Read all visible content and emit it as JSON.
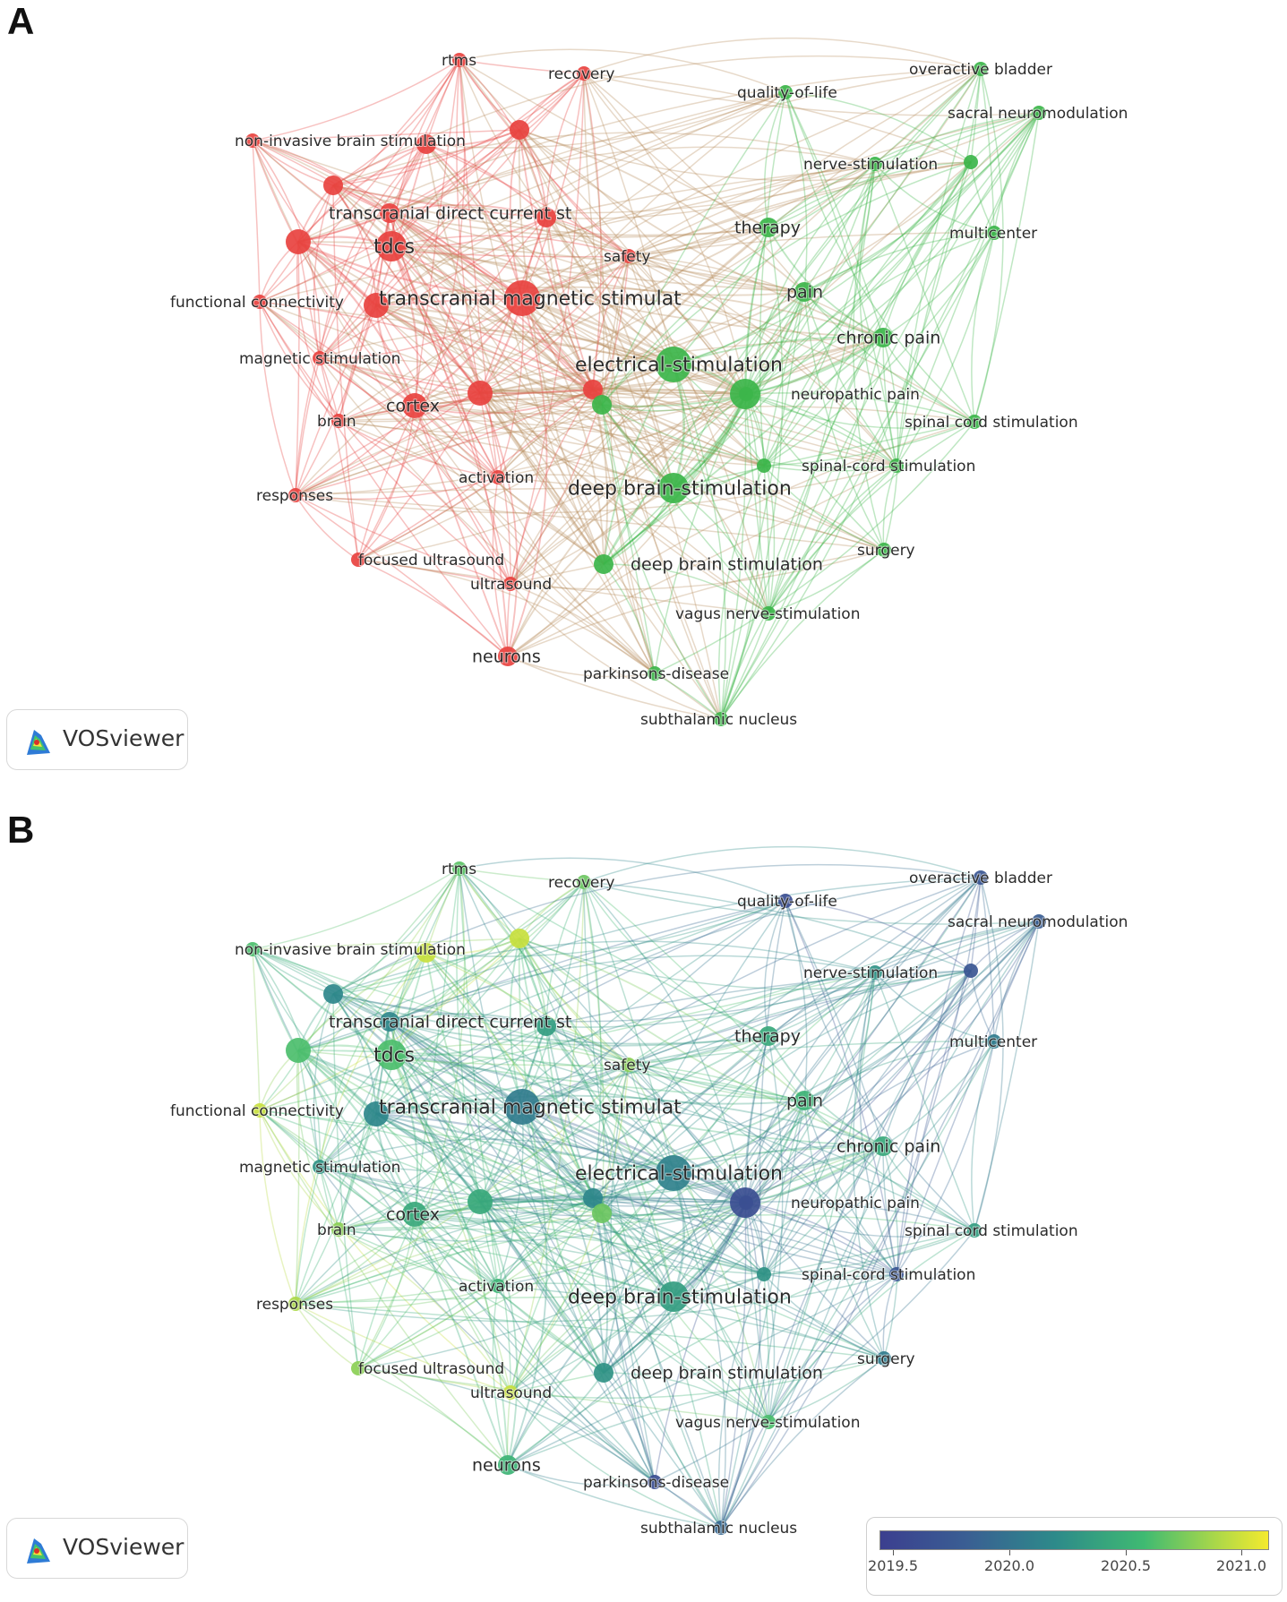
{
  "panels": [
    {
      "letter": "A",
      "mode": "cluster"
    },
    {
      "letter": "B",
      "mode": "overlay"
    }
  ],
  "brand": {
    "name": "VOSviewer"
  },
  "overlay_scale": {
    "ticks": [
      "2019.5",
      "2020.0",
      "2020.5",
      "2021.0"
    ],
    "min": 2019.3,
    "max": 2021.15
  },
  "cluster_colors": {
    "red": "#e8423f",
    "green": "#3cb54a"
  },
  "keywords": [
    {
      "label": "rtms",
      "cluster": "red",
      "weight": 2,
      "year": 2020.65
    },
    {
      "label": "recovery",
      "cluster": "red",
      "weight": 2,
      "year": 2020.7
    },
    {
      "label": "non-invasive brain stimulation",
      "cluster": "red",
      "weight": 2,
      "year": 2020.6
    },
    {
      "label": "transcranial direct current st",
      "cluster": "red",
      "weight": 3,
      "year": 2020.1
    },
    {
      "label": "tdcs",
      "cluster": "red",
      "weight": 5,
      "year": 2020.6
    },
    {
      "label": "transcranial magnetic stimulat",
      "cluster": "red",
      "weight": 6,
      "year": 2020.0
    },
    {
      "label": "functional connectivity",
      "cluster": "red",
      "weight": 2,
      "year": 2021.0
    },
    {
      "label": "magnetic stimulation",
      "cluster": "red",
      "weight": 2,
      "year": 2020.2
    },
    {
      "label": "brain",
      "cluster": "red",
      "weight": 2,
      "year": 2020.8
    },
    {
      "label": "cortex",
      "cluster": "red",
      "weight": 4,
      "year": 2020.4
    },
    {
      "label": "safety",
      "cluster": "red",
      "weight": 2,
      "year": 2020.8
    },
    {
      "label": "activation",
      "cluster": "red",
      "weight": 2,
      "year": 2020.5
    },
    {
      "label": "responses",
      "cluster": "red",
      "weight": 2,
      "year": 2020.9
    },
    {
      "label": "focused ultrasound",
      "cluster": "red",
      "weight": 2,
      "year": 2020.8
    },
    {
      "label": "ultrasound",
      "cluster": "red",
      "weight": 2,
      "year": 2021.0
    },
    {
      "label": "neurons",
      "cluster": "red",
      "weight": 3,
      "year": 2020.5
    },
    {
      "label": "electrical-stimulation",
      "cluster": "green",
      "weight": 6,
      "year": 2020.05
    },
    {
      "label": "deep brain-stimulation",
      "cluster": "green",
      "weight": 5,
      "year": 2020.3
    },
    {
      "label": "deep brain stimulation",
      "cluster": "green",
      "weight": 3,
      "year": 2020.2
    },
    {
      "label": "therapy",
      "cluster": "green",
      "weight": 3,
      "year": 2020.4
    },
    {
      "label": "pain",
      "cluster": "green",
      "weight": 3,
      "year": 2020.5
    },
    {
      "label": "chronic pain",
      "cluster": "green",
      "weight": 3,
      "year": 2020.4
    },
    {
      "label": "neuropathic pain",
      "cluster": "green",
      "weight": 2,
      "year": 2019.6
    },
    {
      "label": "spinal cord stimulation",
      "cluster": "green",
      "weight": 2,
      "year": 2020.3
    },
    {
      "label": "spinal-cord stimulation",
      "cluster": "green",
      "weight": 2,
      "year": 2019.6
    },
    {
      "label": "surgery",
      "cluster": "green",
      "weight": 2,
      "year": 2020.0
    },
    {
      "label": "vagus nerve-stimulation",
      "cluster": "green",
      "weight": 2,
      "year": 2020.6
    },
    {
      "label": "parkinsons-disease",
      "cluster": "green",
      "weight": 2,
      "year": 2019.5
    },
    {
      "label": "subthalamic nucleus",
      "cluster": "green",
      "weight": 2,
      "year": 2019.8
    },
    {
      "label": "quality-of-life",
      "cluster": "green",
      "weight": 2,
      "year": 2019.5
    },
    {
      "label": "overactive bladder",
      "cluster": "green",
      "weight": 2,
      "year": 2019.6
    },
    {
      "label": "sacral neuromodulation",
      "cluster": "green",
      "weight": 2,
      "year": 2019.7
    },
    {
      "label": "nerve-stimulation",
      "cluster": "green",
      "weight": 2,
      "year": 2020.2
    },
    {
      "label": "multicenter",
      "cluster": "green",
      "weight": 2,
      "year": 2020.0
    }
  ],
  "unlabeled_nodes": [
    {
      "cluster": "red",
      "weight": 3,
      "year": 2021.0
    },
    {
      "cluster": "red",
      "weight": 3,
      "year": 2021.0
    },
    {
      "cluster": "red",
      "weight": 3,
      "year": 2020.1
    },
    {
      "cluster": "red",
      "weight": 4,
      "year": 2020.6
    },
    {
      "cluster": "red",
      "weight": 3,
      "year": 2020.3
    },
    {
      "cluster": "red",
      "weight": 4,
      "year": 2020.4
    },
    {
      "cluster": "red",
      "weight": 4,
      "year": 2020.1
    },
    {
      "cluster": "red",
      "weight": 3,
      "year": 2020.1
    },
    {
      "cluster": "green",
      "weight": 5,
      "year": 2019.5
    },
    {
      "cluster": "green",
      "weight": 3,
      "year": 2020.7
    },
    {
      "cluster": "green",
      "weight": 2,
      "year": 2019.6
    },
    {
      "cluster": "green",
      "weight": 2,
      "year": 2020.2
    }
  ]
}
